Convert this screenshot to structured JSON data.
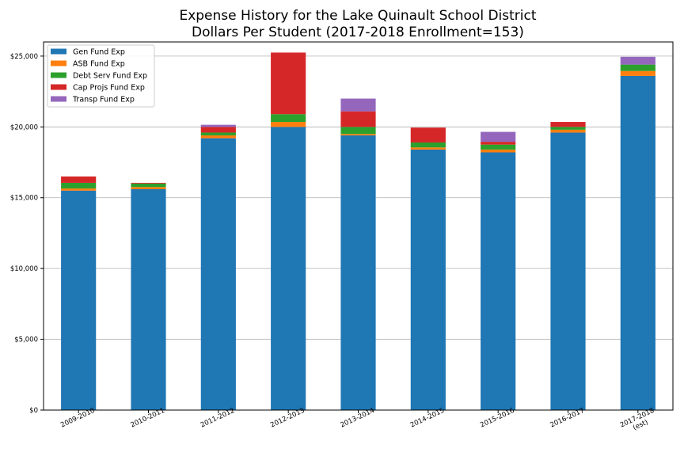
{
  "chart_data": {
    "type": "bar",
    "stacked": true,
    "title_line1": "Expense History for the Lake Quinault School District",
    "title_line2": "Dollars Per Student (2017-2018 Enrollment=153)",
    "xlabel": "",
    "ylabel": "",
    "ylim": [
      0,
      26000
    ],
    "yticks": [
      0,
      5000,
      10000,
      15000,
      20000,
      25000
    ],
    "ytick_labels": [
      "$0",
      "$5,000",
      "$10,000",
      "$15,000",
      "$20,000",
      "$25,000"
    ],
    "grid": "horizontal",
    "legend_placement": "top-left",
    "categories": [
      "2009-2010",
      "2010-2011",
      "2011-2012",
      "2012-2013",
      "2013-2014",
      "2014-2015",
      "2015-2016",
      "2016-2017",
      "2017-2018"
    ],
    "category_sublabels": [
      "",
      "",
      "",
      "",
      "",
      "",
      "",
      "",
      "(est)"
    ],
    "series": [
      {
        "name": "Gen Fund Exp",
        "color": "#1f77b4",
        "values": [
          15500,
          15600,
          19200,
          20000,
          19400,
          18400,
          18200,
          19600,
          23600
        ]
      },
      {
        "name": "ASB Fund Exp",
        "color": "#ff7f0e",
        "values": [
          150,
          150,
          200,
          350,
          100,
          150,
          200,
          200,
          350
        ]
      },
      {
        "name": "Debt Serv Fund Exp",
        "color": "#2ca02c",
        "values": [
          400,
          250,
          200,
          550,
          500,
          350,
          350,
          200,
          450
        ]
      },
      {
        "name": "Cap Projs Fund Exp",
        "color": "#d62728",
        "values": [
          450,
          50,
          400,
          4350,
          1100,
          1050,
          200,
          350,
          0
        ]
      },
      {
        "name": "Transp Fund Exp",
        "color": "#9467bd",
        "values": [
          0,
          0,
          150,
          0,
          900,
          0,
          700,
          0,
          550
        ]
      }
    ]
  }
}
